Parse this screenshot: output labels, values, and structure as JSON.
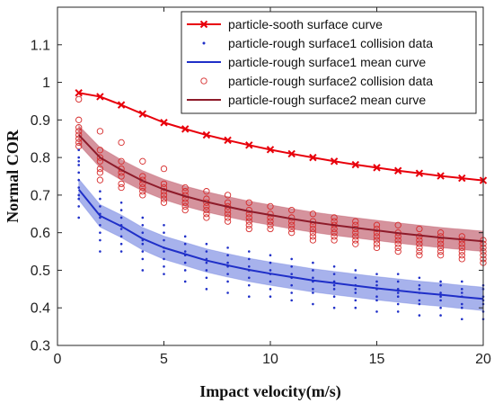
{
  "chart_data": {
    "type": "line",
    "xlabel": "Impact velocity(m/s)",
    "ylabel": "Normal COR",
    "xlim": [
      0,
      20
    ],
    "ylim": [
      0.3,
      1.2
    ],
    "xticks": [
      0,
      5,
      10,
      15,
      20
    ],
    "yticks": [
      0.3,
      0.4,
      0.5,
      0.6,
      0.7,
      0.8,
      0.9,
      1,
      1.1
    ],
    "grid": false,
    "legend_position": "top-right",
    "colors": {
      "smooth": "#e8000b",
      "rough1": "#1f2fc8",
      "rough1_band": "#6d7fe0",
      "rough2_points": "#d62a2a",
      "rough2_mean": "#8e1b2a",
      "rough2_band": "#b94b5b"
    },
    "x": [
      1,
      2,
      3,
      4,
      5,
      6,
      7,
      8,
      9,
      10,
      11,
      12,
      13,
      14,
      15,
      16,
      17,
      18,
      19,
      20
    ],
    "series": [
      {
        "name": "particle-sooth surface curve",
        "kind": "line-marker-x",
        "values": [
          0.972,
          0.962,
          0.94,
          0.916,
          0.893,
          0.876,
          0.86,
          0.846,
          0.833,
          0.821,
          0.81,
          0.8,
          0.79,
          0.781,
          0.773,
          0.765,
          0.758,
          0.751,
          0.745,
          0.739
        ]
      },
      {
        "name": "particle-rough surface1 collision data",
        "kind": "scatter-dot",
        "points": [
          [
            1,
            0.64
          ],
          [
            1,
            0.67
          ],
          [
            1,
            0.69
          ],
          [
            1,
            0.7
          ],
          [
            1,
            0.72
          ],
          [
            1,
            0.74
          ],
          [
            1,
            0.76
          ],
          [
            1,
            0.78
          ],
          [
            1,
            0.79
          ],
          [
            1,
            0.8
          ],
          [
            1,
            0.82
          ],
          [
            2,
            0.55
          ],
          [
            2,
            0.58
          ],
          [
            2,
            0.6
          ],
          [
            2,
            0.62
          ],
          [
            2,
            0.64
          ],
          [
            2,
            0.65
          ],
          [
            2,
            0.67
          ],
          [
            2,
            0.69
          ],
          [
            2,
            0.71
          ],
          [
            3,
            0.55
          ],
          [
            3,
            0.57
          ],
          [
            3,
            0.59
          ],
          [
            3,
            0.61
          ],
          [
            3,
            0.62
          ],
          [
            3,
            0.64
          ],
          [
            3,
            0.66
          ],
          [
            3,
            0.68
          ],
          [
            4,
            0.5
          ],
          [
            4,
            0.53
          ],
          [
            4,
            0.55
          ],
          [
            4,
            0.57
          ],
          [
            4,
            0.58
          ],
          [
            4,
            0.6
          ],
          [
            4,
            0.62
          ],
          [
            4,
            0.64
          ],
          [
            5,
            0.49
          ],
          [
            5,
            0.51
          ],
          [
            5,
            0.53
          ],
          [
            5,
            0.55
          ],
          [
            5,
            0.56
          ],
          [
            5,
            0.58
          ],
          [
            5,
            0.6
          ],
          [
            5,
            0.62
          ],
          [
            6,
            0.47
          ],
          [
            6,
            0.5
          ],
          [
            6,
            0.52
          ],
          [
            6,
            0.54
          ],
          [
            6,
            0.55
          ],
          [
            6,
            0.57
          ],
          [
            6,
            0.59
          ],
          [
            7,
            0.45
          ],
          [
            7,
            0.48
          ],
          [
            7,
            0.5
          ],
          [
            7,
            0.52
          ],
          [
            7,
            0.53
          ],
          [
            7,
            0.55
          ],
          [
            7,
            0.57
          ],
          [
            8,
            0.44
          ],
          [
            8,
            0.47
          ],
          [
            8,
            0.49
          ],
          [
            8,
            0.51
          ],
          [
            8,
            0.52
          ],
          [
            8,
            0.54
          ],
          [
            8,
            0.56
          ],
          [
            9,
            0.43
          ],
          [
            9,
            0.46
          ],
          [
            9,
            0.48
          ],
          [
            9,
            0.5
          ],
          [
            9,
            0.51
          ],
          [
            9,
            0.53
          ],
          [
            9,
            0.55
          ],
          [
            10,
            0.43
          ],
          [
            10,
            0.45
          ],
          [
            10,
            0.47
          ],
          [
            10,
            0.49
          ],
          [
            10,
            0.5
          ],
          [
            10,
            0.52
          ],
          [
            10,
            0.54
          ],
          [
            11,
            0.42
          ],
          [
            11,
            0.44
          ],
          [
            11,
            0.46
          ],
          [
            11,
            0.48
          ],
          [
            11,
            0.49
          ],
          [
            11,
            0.51
          ],
          [
            11,
            0.53
          ],
          [
            12,
            0.41
          ],
          [
            12,
            0.44
          ],
          [
            12,
            0.45
          ],
          [
            12,
            0.47
          ],
          [
            12,
            0.48
          ],
          [
            12,
            0.5
          ],
          [
            12,
            0.52
          ],
          [
            13,
            0.4
          ],
          [
            13,
            0.43
          ],
          [
            13,
            0.45
          ],
          [
            13,
            0.46
          ],
          [
            13,
            0.47
          ],
          [
            13,
            0.49
          ],
          [
            13,
            0.51
          ],
          [
            14,
            0.4
          ],
          [
            14,
            0.42
          ],
          [
            14,
            0.44
          ],
          [
            14,
            0.45
          ],
          [
            14,
            0.46
          ],
          [
            14,
            0.48
          ],
          [
            14,
            0.5
          ],
          [
            15,
            0.39
          ],
          [
            15,
            0.42
          ],
          [
            15,
            0.43
          ],
          [
            15,
            0.45
          ],
          [
            15,
            0.46
          ],
          [
            15,
            0.47
          ],
          [
            15,
            0.49
          ],
          [
            16,
            0.39
          ],
          [
            16,
            0.41
          ],
          [
            16,
            0.43
          ],
          [
            16,
            0.44
          ],
          [
            16,
            0.45
          ],
          [
            16,
            0.47
          ],
          [
            16,
            0.49
          ],
          [
            17,
            0.38
          ],
          [
            17,
            0.41
          ],
          [
            17,
            0.42
          ],
          [
            17,
            0.44
          ],
          [
            17,
            0.45
          ],
          [
            17,
            0.46
          ],
          [
            17,
            0.48
          ],
          [
            18,
            0.38
          ],
          [
            18,
            0.4
          ],
          [
            18,
            0.42
          ],
          [
            18,
            0.43
          ],
          [
            18,
            0.44
          ],
          [
            18,
            0.46
          ],
          [
            18,
            0.47
          ],
          [
            19,
            0.37
          ],
          [
            19,
            0.4
          ],
          [
            19,
            0.41
          ],
          [
            19,
            0.43
          ],
          [
            19,
            0.44
          ],
          [
            19,
            0.45
          ],
          [
            19,
            0.47
          ],
          [
            20,
            0.37
          ],
          [
            20,
            0.39
          ],
          [
            20,
            0.41
          ],
          [
            20,
            0.42
          ],
          [
            20,
            0.43
          ],
          [
            20,
            0.45
          ],
          [
            20,
            0.46
          ]
        ]
      },
      {
        "name": "particle-rough surface1 mean curve",
        "kind": "line-with-band",
        "values": [
          0.715,
          0.645,
          0.617,
          0.584,
          0.56,
          0.543,
          0.526,
          0.513,
          0.501,
          0.491,
          0.482,
          0.473,
          0.466,
          0.459,
          0.452,
          0.446,
          0.44,
          0.435,
          0.429,
          0.424
        ],
        "band_halfwidth": [
          0.028,
          0.03,
          0.03,
          0.03,
          0.031,
          0.031,
          0.031,
          0.031,
          0.031,
          0.031,
          0.031,
          0.031,
          0.031,
          0.031,
          0.031,
          0.031,
          0.031,
          0.031,
          0.031,
          0.031
        ]
      },
      {
        "name": "particle-rough surface2 collision data",
        "kind": "scatter-circle",
        "points": [
          [
            1,
            0.955
          ],
          [
            1,
            0.9
          ],
          [
            1,
            0.88
          ],
          [
            1,
            0.87
          ],
          [
            1,
            0.86
          ],
          [
            1,
            0.85
          ],
          [
            1,
            0.84
          ],
          [
            1,
            0.83
          ],
          [
            2,
            0.87
          ],
          [
            2,
            0.82
          ],
          [
            2,
            0.8
          ],
          [
            2,
            0.79
          ],
          [
            2,
            0.77
          ],
          [
            2,
            0.76
          ],
          [
            2,
            0.74
          ],
          [
            3,
            0.84
          ],
          [
            3,
            0.79
          ],
          [
            3,
            0.77
          ],
          [
            3,
            0.76
          ],
          [
            3,
            0.75
          ],
          [
            3,
            0.73
          ],
          [
            3,
            0.72
          ],
          [
            4,
            0.79
          ],
          [
            4,
            0.75
          ],
          [
            4,
            0.74
          ],
          [
            4,
            0.73
          ],
          [
            4,
            0.72
          ],
          [
            4,
            0.71
          ],
          [
            4,
            0.7
          ],
          [
            5,
            0.77
          ],
          [
            5,
            0.73
          ],
          [
            5,
            0.72
          ],
          [
            5,
            0.71
          ],
          [
            5,
            0.7
          ],
          [
            5,
            0.69
          ],
          [
            5,
            0.68
          ],
          [
            6,
            0.72
          ],
          [
            6,
            0.71
          ],
          [
            6,
            0.7
          ],
          [
            6,
            0.69
          ],
          [
            6,
            0.68
          ],
          [
            6,
            0.67
          ],
          [
            6,
            0.66
          ],
          [
            7,
            0.71
          ],
          [
            7,
            0.69
          ],
          [
            7,
            0.68
          ],
          [
            7,
            0.67
          ],
          [
            7,
            0.66
          ],
          [
            7,
            0.65
          ],
          [
            7,
            0.64
          ],
          [
            8,
            0.7
          ],
          [
            8,
            0.68
          ],
          [
            8,
            0.67
          ],
          [
            8,
            0.66
          ],
          [
            8,
            0.65
          ],
          [
            8,
            0.64
          ],
          [
            8,
            0.63
          ],
          [
            9,
            0.68
          ],
          [
            9,
            0.66
          ],
          [
            9,
            0.65
          ],
          [
            9,
            0.64
          ],
          [
            9,
            0.63
          ],
          [
            9,
            0.62
          ],
          [
            9,
            0.61
          ],
          [
            10,
            0.67
          ],
          [
            10,
            0.65
          ],
          [
            10,
            0.64
          ],
          [
            10,
            0.63
          ],
          [
            10,
            0.62
          ],
          [
            10,
            0.61
          ],
          [
            11,
            0.66
          ],
          [
            11,
            0.64
          ],
          [
            11,
            0.63
          ],
          [
            11,
            0.62
          ],
          [
            11,
            0.61
          ],
          [
            11,
            0.6
          ],
          [
            12,
            0.65
          ],
          [
            12,
            0.63
          ],
          [
            12,
            0.62
          ],
          [
            12,
            0.61
          ],
          [
            12,
            0.6
          ],
          [
            12,
            0.59
          ],
          [
            12,
            0.58
          ],
          [
            13,
            0.64
          ],
          [
            13,
            0.63
          ],
          [
            13,
            0.62
          ],
          [
            13,
            0.61
          ],
          [
            13,
            0.6
          ],
          [
            13,
            0.59
          ],
          [
            13,
            0.58
          ],
          [
            14,
            0.63
          ],
          [
            14,
            0.62
          ],
          [
            14,
            0.61
          ],
          [
            14,
            0.6
          ],
          [
            14,
            0.59
          ],
          [
            14,
            0.58
          ],
          [
            14,
            0.57
          ],
          [
            15,
            0.62
          ],
          [
            15,
            0.61
          ],
          [
            15,
            0.6
          ],
          [
            15,
            0.59
          ],
          [
            15,
            0.58
          ],
          [
            15,
            0.57
          ],
          [
            15,
            0.56
          ],
          [
            16,
            0.62
          ],
          [
            16,
            0.6
          ],
          [
            16,
            0.59
          ],
          [
            16,
            0.58
          ],
          [
            16,
            0.57
          ],
          [
            16,
            0.56
          ],
          [
            16,
            0.55
          ],
          [
            17,
            0.61
          ],
          [
            17,
            0.59
          ],
          [
            17,
            0.58
          ],
          [
            17,
            0.57
          ],
          [
            17,
            0.56
          ],
          [
            17,
            0.55
          ],
          [
            17,
            0.54
          ],
          [
            18,
            0.6
          ],
          [
            18,
            0.59
          ],
          [
            18,
            0.58
          ],
          [
            18,
            0.57
          ],
          [
            18,
            0.56
          ],
          [
            18,
            0.55
          ],
          [
            18,
            0.54
          ],
          [
            19,
            0.59
          ],
          [
            19,
            0.58
          ],
          [
            19,
            0.57
          ],
          [
            19,
            0.56
          ],
          [
            19,
            0.55
          ],
          [
            19,
            0.54
          ],
          [
            19,
            0.53
          ],
          [
            20,
            0.58
          ],
          [
            20,
            0.57
          ],
          [
            20,
            0.56
          ],
          [
            20,
            0.55
          ],
          [
            20,
            0.54
          ],
          [
            20,
            0.53
          ],
          [
            20,
            0.52
          ]
        ]
      },
      {
        "name": "particle-rough surface2 mean curve",
        "kind": "line-with-band",
        "values": [
          0.86,
          0.8,
          0.767,
          0.738,
          0.715,
          0.697,
          0.682,
          0.669,
          0.657,
          0.647,
          0.637,
          0.628,
          0.62,
          0.613,
          0.606,
          0.599,
          0.593,
          0.587,
          0.582,
          0.577
        ],
        "band_halfwidth": [
          0.025,
          0.027,
          0.027,
          0.027,
          0.027,
          0.027,
          0.027,
          0.027,
          0.027,
          0.027,
          0.027,
          0.027,
          0.027,
          0.027,
          0.027,
          0.027,
          0.027,
          0.027,
          0.027,
          0.027
        ]
      }
    ]
  }
}
